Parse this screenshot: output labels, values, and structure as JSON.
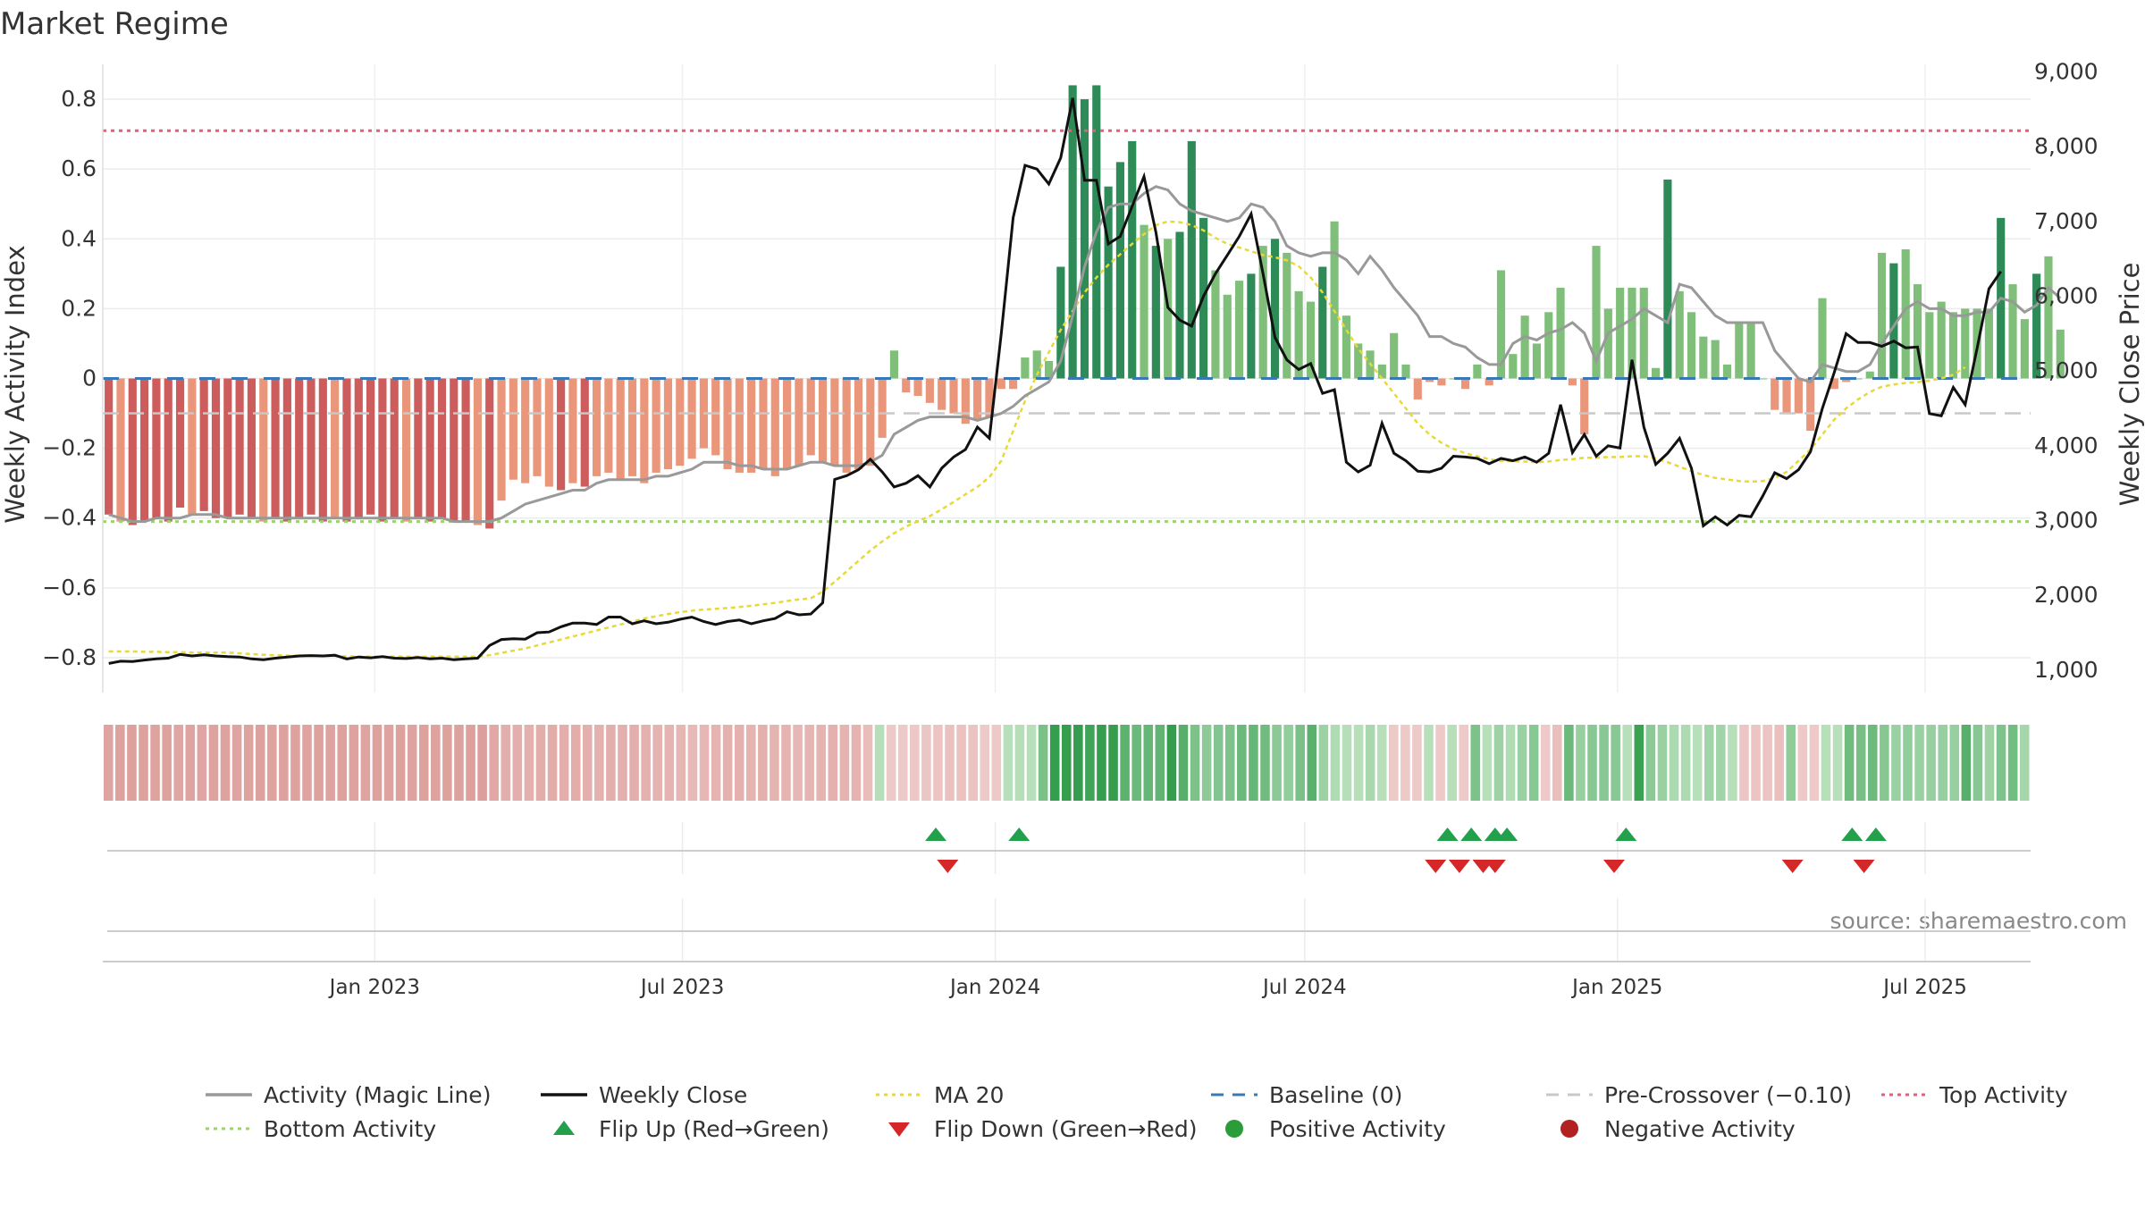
{
  "chart_data": {
    "type": "bar",
    "title": "Market Regime",
    "source": "source: sharemaestro.com",
    "x_axis": {
      "start": "2022-07-25",
      "end": "2025-09-01",
      "ticks": [
        {
          "date": "2023-01-01",
          "label": "Jan 2023"
        },
        {
          "date": "2023-07-01",
          "label": "Jul 2023"
        },
        {
          "date": "2024-01-01",
          "label": "Jan 2024"
        },
        {
          "date": "2024-07-01",
          "label": "Jul 2024"
        },
        {
          "date": "2025-01-01",
          "label": "Jan 2025"
        },
        {
          "date": "2025-07-01",
          "label": "Jul 2025"
        }
      ]
    },
    "y_left": {
      "label": "Weekly Activity Index",
      "range": [
        -0.9,
        0.9
      ],
      "ticks": [
        -0.8,
        -0.6,
        -0.4,
        -0.2,
        0,
        0.2,
        0.4,
        0.6,
        0.8
      ],
      "tick_labels": [
        "−0.8",
        "−0.6",
        "−0.4",
        "−0.2",
        "0",
        "0.2",
        "0.4",
        "0.6",
        "0.8"
      ]
    },
    "y_right": {
      "label": "Weekly Close Price",
      "range": [
        700,
        9100
      ],
      "ticks": [
        1000,
        2000,
        3000,
        4000,
        5000,
        6000,
        7000,
        8000,
        9000
      ],
      "tick_labels": [
        "1,000",
        "2,000",
        "3,000",
        "4,000",
        "5,000",
        "6,000",
        "7,000",
        "8,000",
        "9,000"
      ]
    },
    "reference_lines": {
      "top": 0.71,
      "bottom": -0.41,
      "baseline": 0,
      "pre_crossover": -0.1
    },
    "legend_placement": "bottom",
    "legend": [
      {
        "label": "Activity (Magic Line)",
        "symbol": "line",
        "color": "#999999"
      },
      {
        "label": "Weekly Close",
        "symbol": "line",
        "color": "#111111"
      },
      {
        "label": "MA 20",
        "symbol": "dotted",
        "color": "#e8d93a"
      },
      {
        "label": "Baseline (0)",
        "symbol": "dashed",
        "color": "#3a78b5"
      },
      {
        "label": "Pre-Crossover (−0.10)",
        "symbol": "dashed",
        "color": "#c8c8c8"
      },
      {
        "label": "Top Activity",
        "symbol": "dotted",
        "color": "#e0607e"
      },
      {
        "label": "Bottom Activity",
        "symbol": "dotted",
        "color": "#9bd46a"
      },
      {
        "label": "Flip Up (Red→Green)",
        "symbol": "triangle-up",
        "color": "#22a04b"
      },
      {
        "label": "Flip Down (Green→Red)",
        "symbol": "triangle-down",
        "color": "#d62728"
      },
      {
        "label": "Positive Activity",
        "symbol": "circle",
        "color": "#2a9d3a"
      },
      {
        "label": "Negative Activity",
        "symbol": "circle",
        "color": "#b22222"
      }
    ],
    "activity_bars": [
      -0.39,
      -0.41,
      -0.42,
      -0.41,
      -0.4,
      -0.41,
      -0.37,
      -0.39,
      -0.38,
      -0.4,
      -0.4,
      -0.39,
      -0.4,
      -0.41,
      -0.4,
      -0.41,
      -0.4,
      -0.39,
      -0.41,
      -0.4,
      -0.41,
      -0.4,
      -0.39,
      -0.41,
      -0.4,
      -0.41,
      -0.4,
      -0.41,
      -0.4,
      -0.41,
      -0.41,
      -0.42,
      -0.43,
      -0.35,
      -0.29,
      -0.3,
      -0.28,
      -0.31,
      -0.32,
      -0.3,
      -0.31,
      -0.28,
      -0.27,
      -0.29,
      -0.28,
      -0.3,
      -0.27,
      -0.26,
      -0.25,
      -0.23,
      -0.2,
      -0.22,
      -0.26,
      -0.27,
      -0.27,
      -0.26,
      -0.28,
      -0.26,
      -0.25,
      -0.22,
      -0.24,
      -0.25,
      -0.27,
      -0.26,
      -0.25,
      -0.17,
      0.08,
      -0.04,
      -0.05,
      -0.07,
      -0.09,
      -0.1,
      -0.13,
      -0.12,
      -0.11,
      -0.03,
      -0.03,
      0.06,
      0.08,
      0.05,
      0.32,
      0.84,
      0.8,
      0.84,
      0.55,
      0.62,
      0.68,
      0.44,
      0.38,
      0.4,
      0.42,
      0.68,
      0.46,
      0.31,
      0.24,
      0.28,
      0.3,
      0.38,
      0.4,
      0.36,
      0.25,
      0.22,
      0.32,
      0.45,
      0.18,
      0.1,
      0.08,
      0.04,
      0.13,
      0.04,
      -0.06,
      -0.01,
      -0.02,
      0.0,
      -0.03,
      0.04,
      -0.02,
      0.31,
      0.07,
      0.18,
      0.1,
      0.19,
      0.26,
      -0.02,
      -0.16,
      0.38,
      0.2,
      0.26,
      0.26,
      0.26,
      0.03,
      0.57,
      0.25,
      0.19,
      0.12,
      0.11,
      0.04,
      0.16,
      0.16,
      0.0,
      -0.09,
      -0.1,
      -0.1,
      -0.15,
      0.23,
      -0.03,
      -0.01,
      0.0,
      0.02,
      0.36,
      0.33,
      0.37,
      0.27,
      0.19,
      0.22,
      0.19,
      0.2,
      0.2,
      0.2,
      0.46,
      0.27,
      0.17,
      0.3,
      0.35,
      0.14
    ],
    "magic_line": [
      -0.39,
      -0.4,
      -0.41,
      -0.41,
      -0.4,
      -0.4,
      -0.4,
      -0.39,
      -0.39,
      -0.39,
      -0.4,
      -0.4,
      -0.4,
      -0.4,
      -0.4,
      -0.4,
      -0.4,
      -0.4,
      -0.4,
      -0.4,
      -0.4,
      -0.4,
      -0.4,
      -0.4,
      -0.4,
      -0.4,
      -0.4,
      -0.4,
      -0.4,
      -0.41,
      -0.41,
      -0.41,
      -0.41,
      -0.4,
      -0.38,
      -0.36,
      -0.35,
      -0.34,
      -0.33,
      -0.32,
      -0.32,
      -0.3,
      -0.29,
      -0.29,
      -0.29,
      -0.29,
      -0.28,
      -0.28,
      -0.27,
      -0.26,
      -0.24,
      -0.24,
      -0.24,
      -0.25,
      -0.25,
      -0.26,
      -0.26,
      -0.26,
      -0.25,
      -0.24,
      -0.24,
      -0.25,
      -0.25,
      -0.25,
      -0.24,
      -0.22,
      -0.16,
      -0.14,
      -0.12,
      -0.11,
      -0.11,
      -0.11,
      -0.11,
      -0.12,
      -0.11,
      -0.1,
      -0.08,
      -0.05,
      -0.03,
      -0.01,
      0.05,
      0.18,
      0.32,
      0.42,
      0.49,
      0.5,
      0.5,
      0.53,
      0.55,
      0.54,
      0.5,
      0.48,
      0.47,
      0.46,
      0.45,
      0.46,
      0.5,
      0.49,
      0.45,
      0.38,
      0.36,
      0.35,
      0.36,
      0.36,
      0.34,
      0.3,
      0.35,
      0.31,
      0.26,
      0.22,
      0.18,
      0.12,
      0.12,
      0.1,
      0.09,
      0.06,
      0.04,
      0.04,
      0.1,
      0.12,
      0.11,
      0.13,
      0.14,
      0.16,
      0.13,
      0.05,
      0.13,
      0.15,
      0.17,
      0.2,
      0.18,
      0.16,
      0.27,
      0.26,
      0.22,
      0.18,
      0.16,
      0.16,
      0.16,
      0.16,
      0.08,
      0.04,
      0.0,
      -0.01,
      0.04,
      0.03,
      0.02,
      0.02,
      0.04,
      0.1,
      0.15,
      0.2,
      0.22,
      0.2,
      0.2,
      0.18,
      0.18,
      0.19,
      0.19,
      0.23,
      0.22,
      0.19,
      0.21,
      0.26,
      0.23
    ],
    "weekly_close": [
      1090,
      1120,
      1115,
      1135,
      1150,
      1160,
      1210,
      1190,
      1205,
      1190,
      1180,
      1175,
      1150,
      1140,
      1160,
      1175,
      1190,
      1195,
      1190,
      1200,
      1150,
      1175,
      1165,
      1180,
      1160,
      1155,
      1170,
      1150,
      1160,
      1140,
      1150,
      1160,
      1330,
      1410,
      1420,
      1415,
      1500,
      1510,
      1580,
      1630,
      1630,
      1610,
      1710,
      1710,
      1620,
      1660,
      1620,
      1640,
      1680,
      1710,
      1650,
      1610,
      1650,
      1670,
      1620,
      1660,
      1690,
      1780,
      1740,
      1750,
      1900,
      3550,
      3600,
      3680,
      3820,
      3650,
      3450,
      3500,
      3600,
      3450,
      3700,
      3850,
      3950,
      4250,
      4100,
      5500,
      7050,
      7750,
      7700,
      7500,
      7850,
      8650,
      7550,
      7550,
      6700,
      6800,
      7200,
      7600,
      6850,
      5850,
      5680,
      5600,
      6000,
      6300,
      6550,
      6800,
      7100,
      6300,
      5450,
      5150,
      5020,
      5100,
      4700,
      4750,
      3780,
      3650,
      3740,
      4300,
      3900,
      3800,
      3660,
      3650,
      3700,
      3860,
      3850,
      3830,
      3760,
      3830,
      3800,
      3850,
      3780,
      3900,
      4550,
      3910,
      4150,
      3860,
      4000,
      3970,
      5150,
      4250,
      3750,
      3900,
      4100,
      3700,
      2930,
      3050,
      2940,
      3070,
      3050,
      3330,
      3640,
      3560,
      3680,
      3920,
      4500,
      4980,
      5500,
      5380,
      5380,
      5330,
      5400,
      5310,
      5320,
      4430,
      4400,
      4780,
      4550,
      5300,
      6100,
      6330
    ],
    "ma20": [
      1250,
      1250,
      1250,
      1245,
      1245,
      1240,
      1240,
      1235,
      1235,
      1235,
      1235,
      1225,
      1215,
      1205,
      1200,
      1195,
      1195,
      1195,
      1195,
      1190,
      1185,
      1180,
      1180,
      1180,
      1180,
      1180,
      1180,
      1180,
      1180,
      1180,
      1180,
      1180,
      1200,
      1230,
      1260,
      1290,
      1330,
      1370,
      1410,
      1450,
      1490,
      1530,
      1570,
      1610,
      1650,
      1690,
      1720,
      1750,
      1775,
      1795,
      1810,
      1820,
      1830,
      1845,
      1860,
      1880,
      1900,
      1925,
      1945,
      1960,
      2050,
      2180,
      2320,
      2460,
      2600,
      2720,
      2830,
      2920,
      2990,
      3060,
      3150,
      3250,
      3350,
      3450,
      3580,
      3800,
      4200,
      4600,
      4950,
      5250,
      5550,
      5800,
      6050,
      6250,
      6420,
      6560,
      6700,
      6830,
      6950,
      7000,
      6990,
      6950,
      6880,
      6780,
      6700,
      6650,
      6600,
      6550,
      6520,
      6480,
      6400,
      6250,
      6050,
      5800,
      5550,
      5300,
      5100,
      4900,
      4700,
      4500,
      4300,
      4150,
      4040,
      3960,
      3900,
      3860,
      3820,
      3800,
      3790,
      3790,
      3780,
      3790,
      3810,
      3820,
      3840,
      3840,
      3850,
      3850,
      3860,
      3860,
      3830,
      3780,
      3720,
      3660,
      3610,
      3570,
      3550,
      3530,
      3520,
      3530,
      3570,
      3650,
      3800,
      3950,
      4150,
      4350,
      4500,
      4620,
      4720,
      4790,
      4820,
      4840,
      4850,
      4870,
      4900,
      4950,
      5050
    ],
    "regime_strip": [
      -0.39,
      -0.41,
      -0.42,
      -0.41,
      -0.4,
      -0.41,
      -0.37,
      -0.39,
      -0.38,
      -0.4,
      -0.4,
      -0.39,
      -0.4,
      -0.41,
      -0.4,
      -0.41,
      -0.4,
      -0.39,
      -0.41,
      -0.4,
      -0.41,
      -0.4,
      -0.39,
      -0.41,
      -0.4,
      -0.41,
      -0.4,
      -0.41,
      -0.4,
      -0.41,
      -0.41,
      -0.42,
      -0.43,
      -0.35,
      -0.29,
      -0.3,
      -0.28,
      -0.31,
      -0.32,
      -0.3,
      -0.31,
      -0.28,
      -0.27,
      -0.29,
      -0.28,
      -0.3,
      -0.27,
      -0.26,
      -0.25,
      -0.23,
      -0.2,
      -0.22,
      -0.26,
      -0.27,
      -0.27,
      -0.26,
      -0.28,
      -0.26,
      -0.25,
      -0.22,
      -0.24,
      -0.25,
      -0.27,
      -0.26,
      -0.25,
      -0.17,
      0.08,
      -0.04,
      -0.05,
      -0.07,
      -0.09,
      -0.1,
      -0.13,
      -0.12,
      -0.11,
      -0.03,
      -0.03,
      0.06,
      0.08,
      0.05,
      0.32,
      0.84,
      0.8,
      0.84,
      0.55,
      0.62,
      0.68,
      0.44,
      0.38,
      0.4,
      0.42,
      0.68,
      0.46,
      0.31,
      0.24,
      0.28,
      0.3,
      0.38,
      0.4,
      0.36,
      0.25,
      0.22,
      0.32,
      0.45,
      0.18,
      0.1,
      0.08,
      0.04,
      0.13,
      0.04,
      -0.06,
      -0.01,
      -0.02,
      0.0,
      -0.03,
      0.04,
      -0.02,
      0.31,
      0.07,
      0.18,
      0.1,
      0.19,
      0.26,
      -0.02,
      -0.16,
      0.38,
      0.2,
      0.26,
      0.26,
      0.26,
      0.03,
      0.57,
      0.25,
      0.19,
      0.12,
      0.11,
      0.04,
      0.16,
      0.16,
      0.0,
      -0.09,
      -0.1,
      -0.1,
      -0.15,
      0.23,
      -0.03,
      -0.01,
      0.0,
      0.02,
      0.36,
      0.33,
      0.37,
      0.27,
      0.19,
      0.22,
      0.19,
      0.2,
      0.2,
      0.2,
      0.46,
      0.27,
      0.17,
      0.3,
      0.35,
      0.14
    ],
    "flip_up_dates": [
      "2023-11-27",
      "2024-01-15",
      "2024-09-23",
      "2024-10-07",
      "2024-10-21",
      "2024-10-28",
      "2025-01-06",
      "2025-05-19",
      "2025-06-02"
    ],
    "flip_down_dates": [
      "2023-12-04",
      "2024-09-16",
      "2024-09-30",
      "2024-10-14",
      "2024-10-21",
      "2024-12-30",
      "2025-04-14",
      "2025-05-26"
    ]
  },
  "colors": {
    "strong_green": "#2e8b57",
    "light_green": "#7fbf7a",
    "strong_red": "#cd5c5c",
    "light_red": "#e9967a",
    "grid": "#e6e6e6",
    "axis_text": "#333333"
  }
}
